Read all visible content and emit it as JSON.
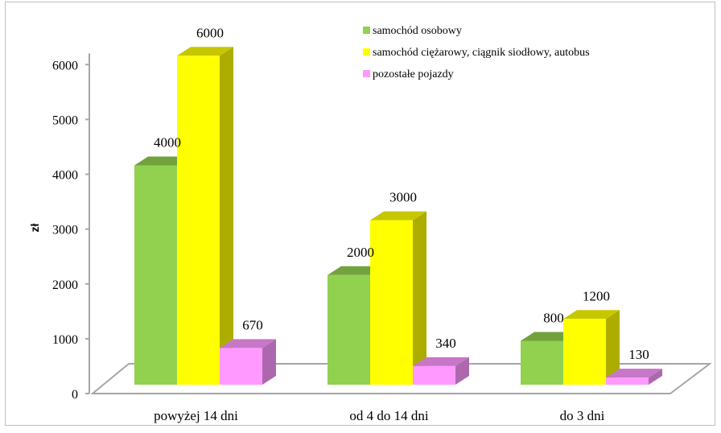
{
  "chart_data": {
    "type": "bar",
    "categories": [
      "powyżej 14 dni",
      "od 4 do 14 dni",
      "do 3 dni"
    ],
    "series": [
      {
        "name": "samochód osobowy",
        "values": [
          4000,
          2000,
          800
        ],
        "color": "#92d050"
      },
      {
        "name": "samochód ciężarowy, ciągnik siodłowy, autobus",
        "values": [
          6000,
          3000,
          1200
        ],
        "color": "#ffff00"
      },
      {
        "name": "pozostałe pojazdy",
        "values": [
          670,
          340,
          130
        ],
        "color": "#ff99ff"
      }
    ],
    "data_labels": [
      [
        "4000",
        "2000",
        "800"
      ],
      [
        "6000",
        "3000",
        "1200"
      ],
      [
        "670",
        "340",
        "130"
      ]
    ],
    "title": "",
    "xlabel": "",
    "ylabel": "zł",
    "ylim": [
      0,
      6000
    ],
    "yticks": [
      0,
      1000,
      2000,
      3000,
      4000,
      5000,
      6000
    ],
    "ytick_labels": [
      "0",
      "1000",
      "2000",
      "3000",
      "4000",
      "5000",
      "6000"
    ],
    "grid": false,
    "legend_position": "top-right",
    "style": "3d-column"
  }
}
